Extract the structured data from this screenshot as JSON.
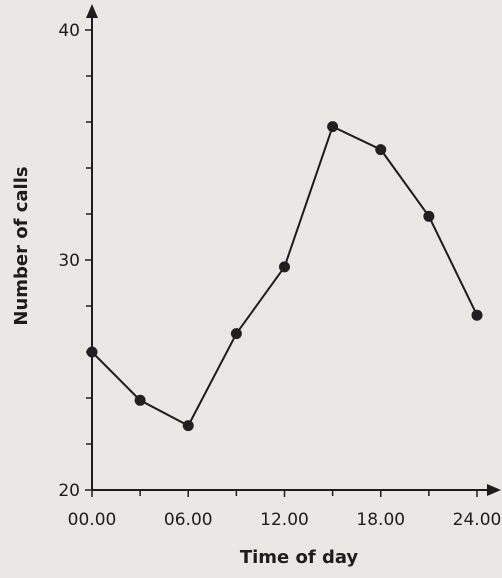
{
  "chart_data": {
    "type": "line",
    "title": "",
    "xlabel": "Time of day",
    "ylabel": "Number of calls",
    "x_ticks": [
      "00.00",
      "06.00",
      "12.00",
      "18.00",
      "24.00"
    ],
    "x_tick_values": [
      0,
      6,
      12,
      18,
      24
    ],
    "xlim": [
      0,
      24
    ],
    "y_ticks": [
      "20",
      "30",
      "40"
    ],
    "y_tick_values": [
      20,
      30,
      40
    ],
    "y_minor_ticks": [
      22,
      24,
      26,
      28,
      32,
      34,
      36,
      38
    ],
    "ylim": [
      20,
      40
    ],
    "grid": false,
    "series": [
      {
        "x": [
          0,
          3,
          6,
          9,
          12,
          15,
          18,
          21,
          24
        ],
        "values": [
          26.0,
          23.9,
          22.8,
          26.8,
          29.7,
          35.8,
          34.8,
          31.9,
          27.6
        ]
      }
    ]
  }
}
